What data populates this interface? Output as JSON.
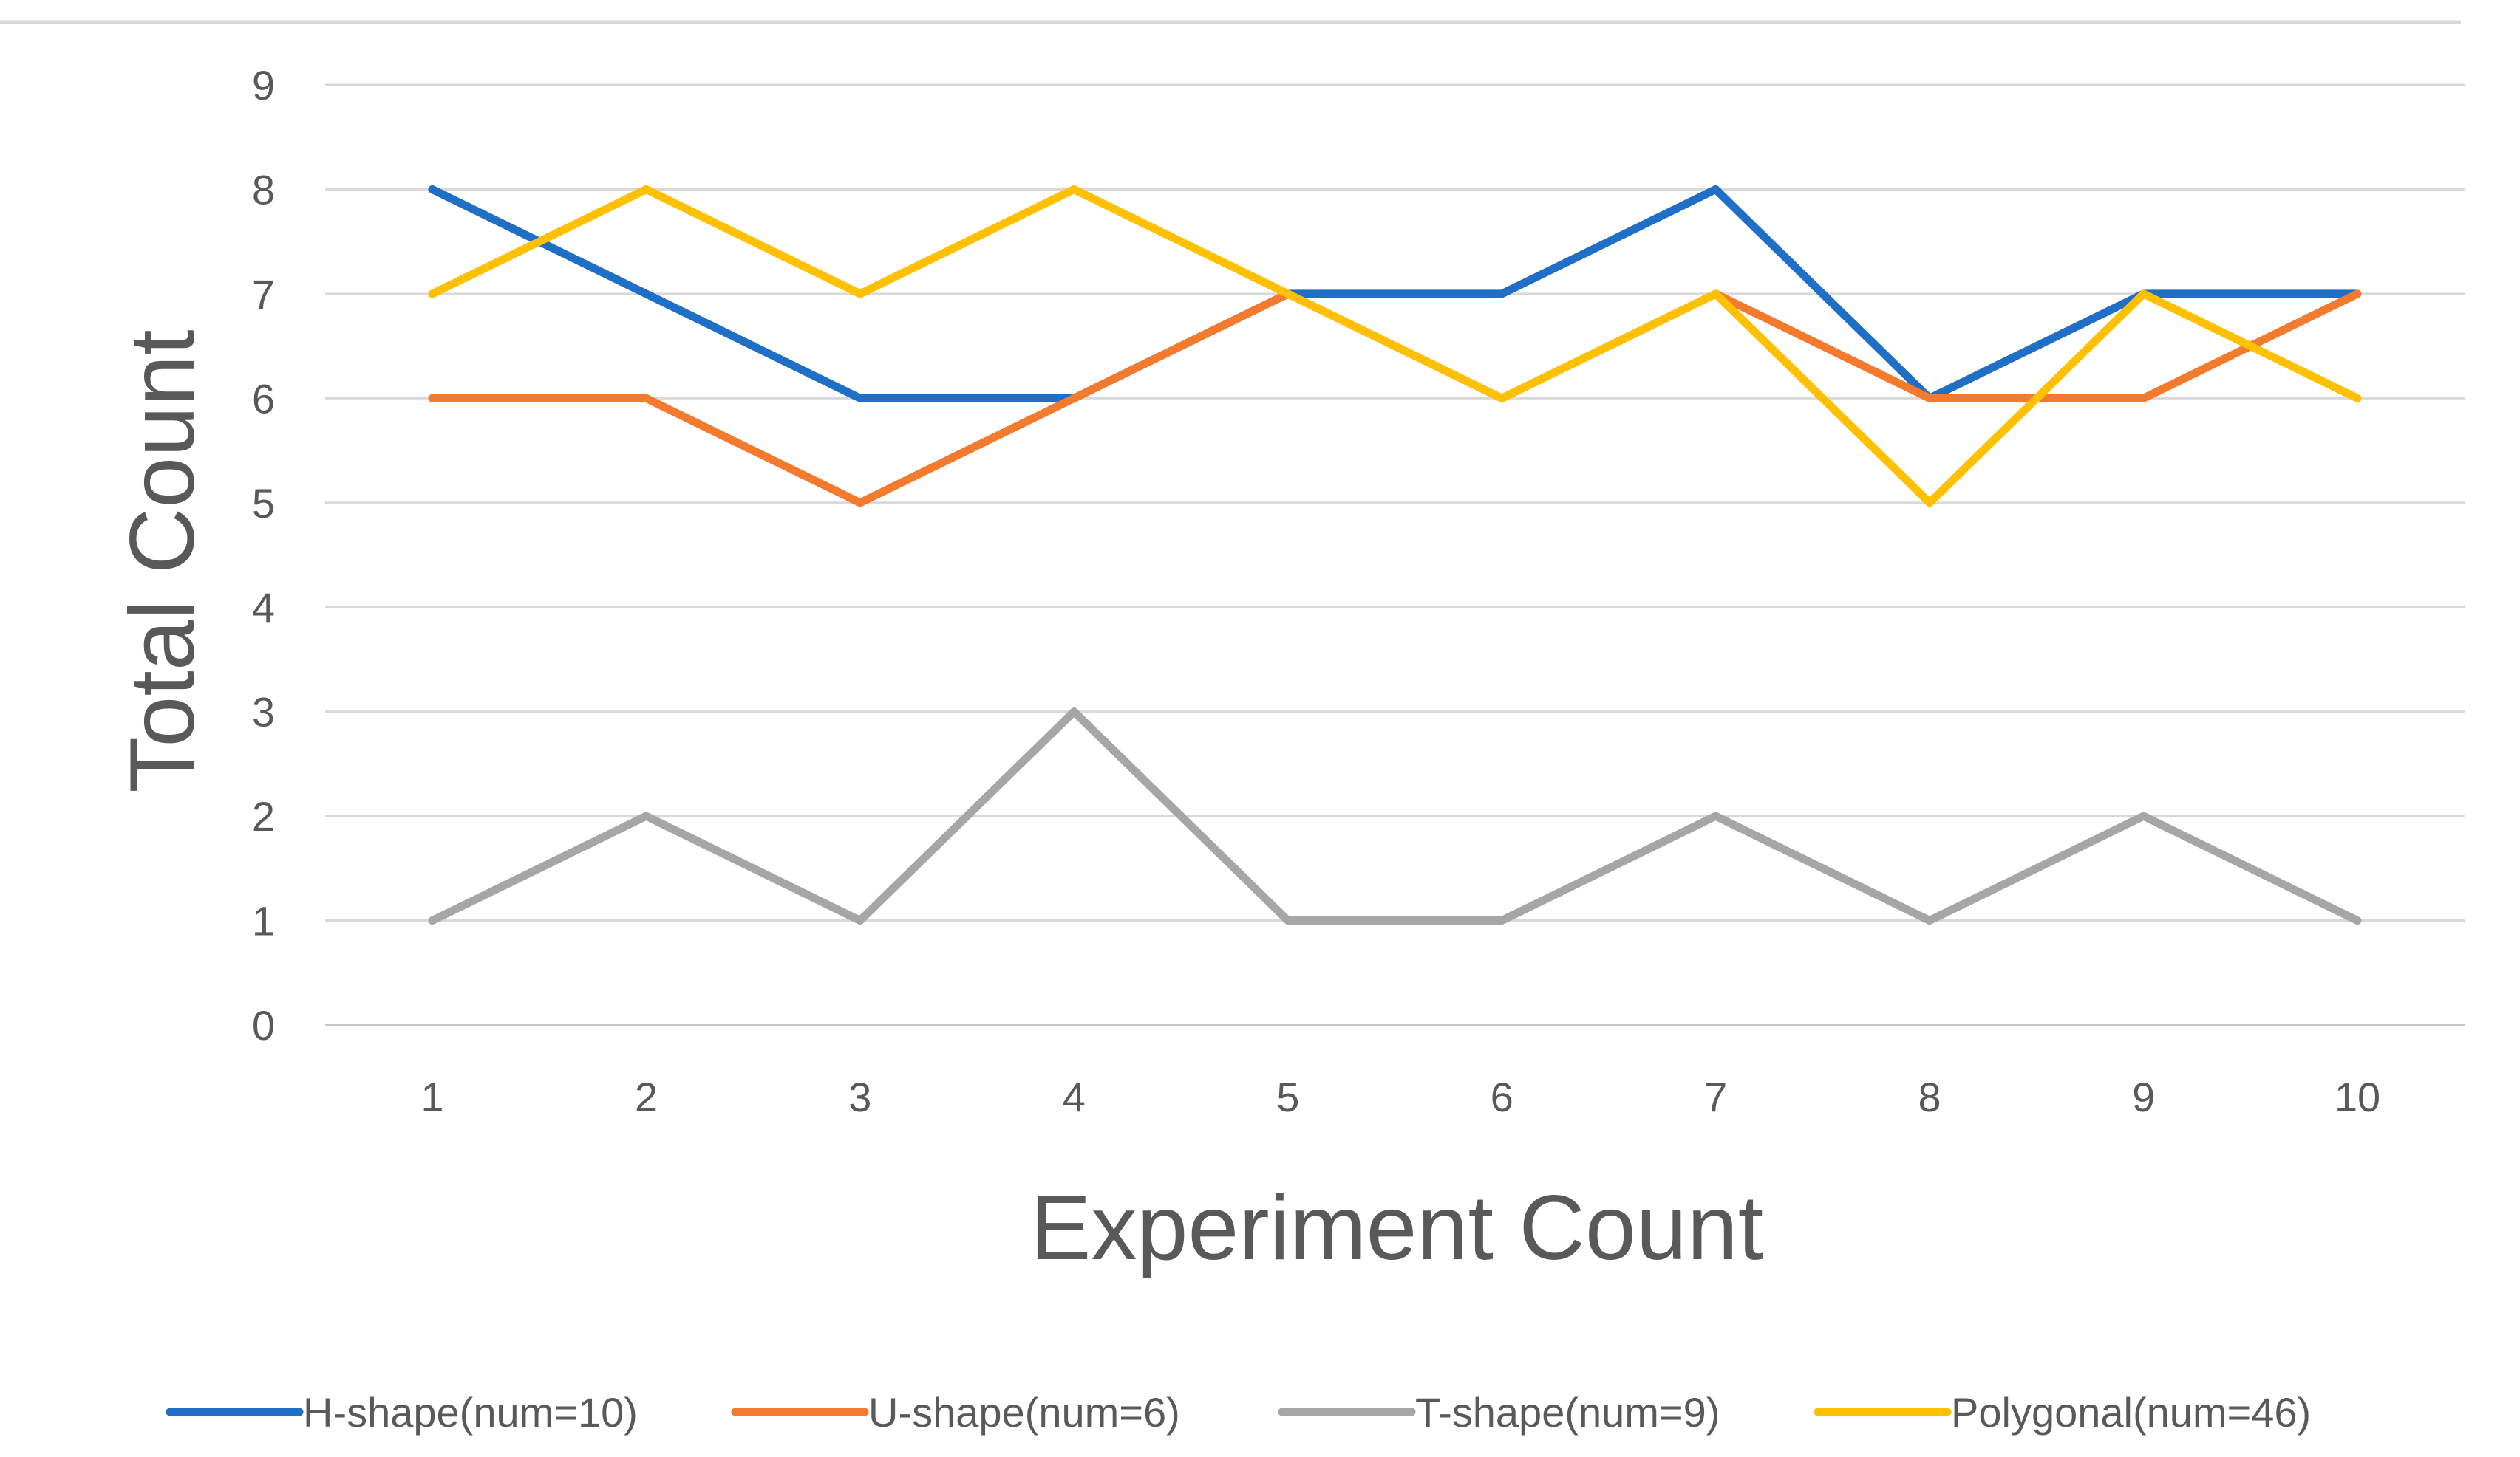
{
  "chart_data": {
    "type": "line",
    "title": "",
    "xlabel": "Experiment Count",
    "ylabel": "Total Count",
    "categories": [
      "1",
      "2",
      "3",
      "4",
      "5",
      "6",
      "7",
      "8",
      "9",
      "10"
    ],
    "yticks": [
      "0",
      "1",
      "2",
      "3",
      "4",
      "5",
      "6",
      "7",
      "8",
      "9"
    ],
    "ylim": [
      0,
      9
    ],
    "grid": true,
    "legend_position": "bottom",
    "series": [
      {
        "name": "H-shape(num=10)",
        "color": "#1F6FC6",
        "values": [
          8,
          7,
          6,
          6,
          7,
          7,
          8,
          6,
          7,
          7
        ]
      },
      {
        "name": "U-shape(num=6)",
        "color": "#F47A2E",
        "values": [
          6,
          6,
          5,
          6,
          7,
          6,
          7,
          6,
          6,
          7
        ]
      },
      {
        "name": "T-shape(num=9)",
        "color": "#A6A6A6",
        "values": [
          1,
          2,
          1,
          3,
          1,
          1,
          2,
          1,
          2,
          1
        ]
      },
      {
        "name": "Polygonal(num=46)",
        "color": "#FFC000",
        "values": [
          7,
          8,
          7,
          8,
          7,
          6,
          7,
          5,
          7,
          6
        ]
      }
    ]
  }
}
